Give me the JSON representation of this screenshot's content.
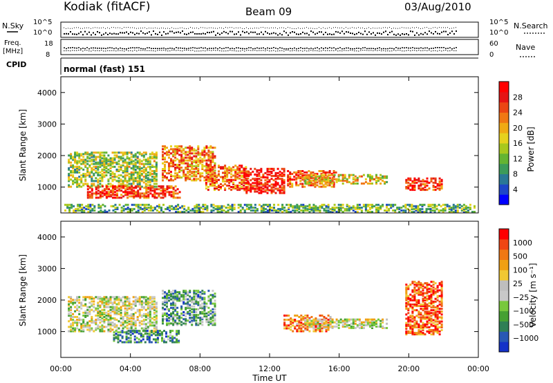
{
  "header": {
    "station": "Kodiak (fitACF)",
    "beam": "Beam 09",
    "date": "03/Aug/2010"
  },
  "summary": {
    "nsky_label": "N.Sky",
    "nsky_ticks": [
      "10^5",
      "10^0"
    ],
    "nsearch_label": "N.Search",
    "nsearch_ticks": [
      "10^5",
      "10^0"
    ],
    "freq_label_1": "Freq.",
    "freq_label_2": "[MHz]",
    "freq_ticks": [
      "18",
      "8"
    ],
    "nave_label": "Nave",
    "nave_ticks": [
      "60",
      "0"
    ],
    "cpid_label": "CPID",
    "cpid_value": "normal (fast) 151"
  },
  "chart_data": [
    {
      "type": "heatmap",
      "panel": "power",
      "ylabel": "Slant Range [km]",
      "xlabel": "Time UT",
      "x_range_hours": [
        0,
        24
      ],
      "ylim": [
        180,
        4500
      ],
      "y_ticks": [
        "1000",
        "2000",
        "3000",
        "4000"
      ],
      "colorbar": {
        "label": "Power [dB]",
        "ticks": [
          "4",
          "8",
          "12",
          "16",
          "20",
          "24",
          "28"
        ],
        "colors": [
          "#0000ff",
          "#1e46c8",
          "#2a7896",
          "#3c9b5a",
          "#64b432",
          "#a8c81e",
          "#e6d21e",
          "#f0aa14",
          "#f07814",
          "#eb4614",
          "#e61414",
          "#ff0000"
        ]
      },
      "echo_regions_hours_km": [
        {
          "t0": 0.4,
          "t1": 5.5,
          "r0": 1000,
          "r1": 2100,
          "level": 0.45
        },
        {
          "t0": 1.5,
          "t1": 6.8,
          "r0": 650,
          "r1": 1050,
          "level": 0.85
        },
        {
          "t0": 5.8,
          "t1": 8.8,
          "r0": 1200,
          "r1": 2300,
          "level": 0.7
        },
        {
          "t0": 8.3,
          "t1": 10.8,
          "r0": 900,
          "r1": 1700,
          "level": 0.75
        },
        {
          "t0": 10.5,
          "t1": 12.8,
          "r0": 800,
          "r1": 1600,
          "level": 0.9
        },
        {
          "t0": 13.0,
          "t1": 15.8,
          "r0": 1000,
          "r1": 1500,
          "level": 0.8
        },
        {
          "t0": 14.0,
          "t1": 18.8,
          "r0": 1100,
          "r1": 1400,
          "level": 0.55
        },
        {
          "t0": 19.8,
          "t1": 21.9,
          "r0": 900,
          "r1": 1300,
          "level": 0.85
        },
        {
          "t0": 0.2,
          "t1": 23.8,
          "r0": 200,
          "r1": 450,
          "level": 0.35
        }
      ]
    },
    {
      "type": "heatmap",
      "panel": "velocity",
      "ylabel": "Slant Range [km]",
      "xlabel": "Time UT",
      "x_range_hours": [
        0,
        24
      ],
      "ylim": [
        180,
        4500
      ],
      "y_ticks": [
        "1000",
        "2000",
        "3000",
        "4000"
      ],
      "colorbar": {
        "label": "Velocity [m s⁻¹]",
        "ticks": [
          "1000",
          "500",
          "100",
          "25",
          "−25",
          "−100",
          "−500",
          "−1000"
        ],
        "colors": [
          "#1432c8",
          "#2858b4",
          "#2f7f55",
          "#46a032",
          "#78c83c",
          "#c8c8c8",
          "#bebebe",
          "#f0c832",
          "#f0a014",
          "#f07814",
          "#f04614",
          "#ff0000"
        ]
      },
      "echo_regions_hours_km": [
        {
          "t0": 0.4,
          "t1": 5.5,
          "r0": 1000,
          "r1": 2100,
          "level": 0.5
        },
        {
          "t0": 3.0,
          "t1": 6.8,
          "r0": 650,
          "r1": 1050,
          "level": 0.25
        },
        {
          "t0": 5.8,
          "t1": 8.8,
          "r0": 1200,
          "r1": 2300,
          "level": 0.3
        },
        {
          "t0": 12.8,
          "t1": 15.5,
          "r0": 1000,
          "r1": 1500,
          "level": 0.8
        },
        {
          "t0": 14.0,
          "t1": 18.8,
          "r0": 1100,
          "r1": 1400,
          "level": 0.5
        },
        {
          "t0": 19.8,
          "t1": 21.9,
          "r0": 900,
          "r1": 2600,
          "level": 0.85
        }
      ]
    }
  ],
  "time_axis": {
    "ticks": [
      "00:00",
      "04:00",
      "08:00",
      "12:00",
      "16:00",
      "20:00",
      "00:00"
    ],
    "label": "Time UT"
  }
}
